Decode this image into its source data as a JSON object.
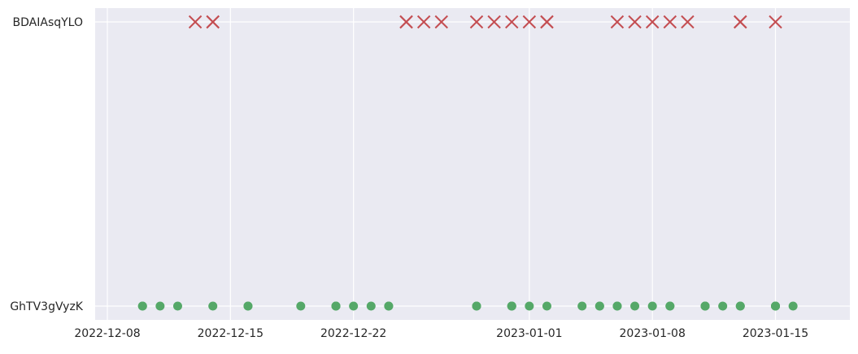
{
  "chart_data": {
    "type": "scatter",
    "title": "",
    "xlabel": "",
    "ylabel": "",
    "grid": true,
    "background_color": "#eaeaf2",
    "grid_color": "#ffffff",
    "categories": [
      "GhTV3gVyzK",
      "BDAIAsqYLO"
    ],
    "xlim": [
      "2022-12-08",
      "2023-01-19"
    ],
    "x_ticks": [
      "2022-12-08",
      "2022-12-15",
      "2022-12-22",
      "2023-01-01",
      "2023-01-08",
      "2023-01-15"
    ],
    "series": [
      {
        "category": "BDAIAsqYLO",
        "marker": "x",
        "color": "#c44e52",
        "x": [
          "2022-12-13",
          "2022-12-14",
          "2022-12-14",
          "2022-12-25",
          "2022-12-25",
          "2022-12-26",
          "2022-12-27",
          "2022-12-29",
          "2022-12-30",
          "2022-12-31",
          "2023-01-01",
          "2023-01-02",
          "2023-01-02",
          "2023-01-06",
          "2023-01-07",
          "2023-01-08",
          "2023-01-09",
          "2023-01-10",
          "2023-01-13",
          "2023-01-13",
          "2023-01-15"
        ]
      },
      {
        "category": "GhTV3gVyzK",
        "marker": "o",
        "color": "#55a868",
        "x": [
          "2022-12-10",
          "2022-12-10",
          "2022-12-11",
          "2022-12-12",
          "2022-12-14",
          "2022-12-16",
          "2022-12-16",
          "2022-12-19",
          "2022-12-21",
          "2022-12-21",
          "2022-12-21",
          "2022-12-22",
          "2022-12-23",
          "2022-12-24",
          "2022-12-24",
          "2022-12-29",
          "2022-12-29",
          "2022-12-31",
          "2022-12-31",
          "2022-12-31",
          "2023-01-01",
          "2023-01-02",
          "2023-01-04",
          "2023-01-05",
          "2023-01-05",
          "2023-01-06",
          "2023-01-06",
          "2023-01-07",
          "2023-01-08",
          "2023-01-09",
          "2023-01-09",
          "2023-01-11",
          "2023-01-11",
          "2023-01-11",
          "2023-01-12",
          "2023-01-13",
          "2023-01-13",
          "2023-01-15",
          "2023-01-15",
          "2023-01-15",
          "2023-01-16"
        ]
      }
    ]
  }
}
